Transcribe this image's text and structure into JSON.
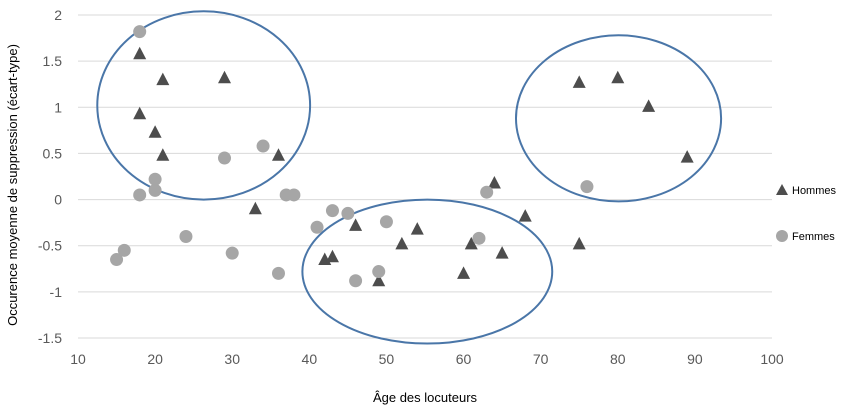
{
  "chart_data": {
    "type": "scatter",
    "title": "",
    "xlabel": "Âge des locuteurs",
    "ylabel": "Occurence moyenne de suppression (écart-type)",
    "xlim": [
      10,
      100
    ],
    "ylim": [
      -1.5,
      2
    ],
    "xticks": [
      10,
      20,
      30,
      40,
      50,
      60,
      70,
      80,
      90,
      100
    ],
    "yticks": [
      2,
      1.5,
      1,
      0.5,
      0,
      -0.5,
      -1,
      -1.5
    ],
    "grid": "horizontal",
    "legend_position": "right",
    "series": [
      {
        "name": "Hommes",
        "marker": "triangle",
        "color": "#4d4d4d",
        "points": [
          [
            18,
            1.58
          ],
          [
            21,
            1.3
          ],
          [
            29,
            1.32
          ],
          [
            18,
            0.93
          ],
          [
            20,
            0.73
          ],
          [
            21,
            0.48
          ],
          [
            36,
            0.48
          ],
          [
            33,
            -0.1
          ],
          [
            42,
            -0.65
          ],
          [
            43,
            -0.62
          ],
          [
            46,
            -0.28
          ],
          [
            49,
            -0.88
          ],
          [
            52,
            -0.48
          ],
          [
            54,
            -0.32
          ],
          [
            60,
            -0.8
          ],
          [
            61,
            -0.48
          ],
          [
            64,
            0.18
          ],
          [
            65,
            -0.58
          ],
          [
            68,
            -0.18
          ],
          [
            75,
            1.27
          ],
          [
            80,
            1.32
          ],
          [
            84,
            1.01
          ],
          [
            89,
            0.46
          ],
          [
            75,
            -0.48
          ]
        ]
      },
      {
        "name": "Femmes",
        "marker": "circle",
        "color": "#a6a6a6",
        "points": [
          [
            18,
            1.82
          ],
          [
            15,
            -0.65
          ],
          [
            16,
            -0.55
          ],
          [
            18,
            0.05
          ],
          [
            20,
            0.22
          ],
          [
            20,
            0.1
          ],
          [
            24,
            -0.4
          ],
          [
            29,
            0.45
          ],
          [
            30,
            -0.58
          ],
          [
            34,
            0.58
          ],
          [
            36,
            -0.8
          ],
          [
            37,
            0.05
          ],
          [
            38,
            0.05
          ],
          [
            41,
            -0.3
          ],
          [
            43,
            -0.12
          ],
          [
            45,
            -0.15
          ],
          [
            46,
            -0.88
          ],
          [
            49,
            -0.78
          ],
          [
            50,
            -0.24
          ],
          [
            62,
            -0.42
          ],
          [
            63,
            0.08
          ],
          [
            76,
            0.14
          ]
        ]
      }
    ],
    "annotations": {
      "type": "ellipses",
      "color": "#4a76a8",
      "regions": [
        {
          "cx": 26.3,
          "cy": 1.02,
          "rx": 13.8,
          "ry": 1.02
        },
        {
          "cx": 55.3,
          "cy": -0.78,
          "rx": 16.2,
          "ry": 0.78
        },
        {
          "cx": 80.1,
          "cy": 0.88,
          "rx": 13.3,
          "ry": 0.9
        }
      ]
    }
  }
}
